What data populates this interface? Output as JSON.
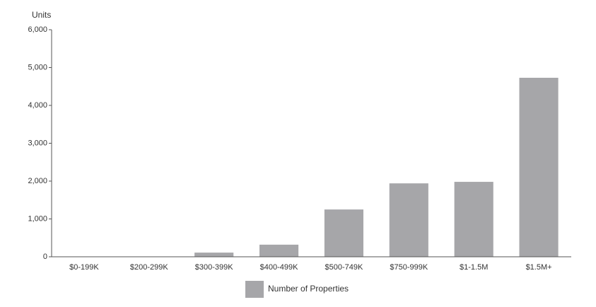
{
  "chart_data": {
    "type": "bar",
    "y_label": "Units",
    "categories": [
      "$0-199K",
      "$200-299K",
      "$300-399K",
      "$400-499K",
      "$500-749K",
      "$750-999K",
      "$1-1.5M",
      "$1.5M+"
    ],
    "series": [
      {
        "name": "Number of Properties",
        "color": "#a6a6a9",
        "values": [
          0,
          0,
          110,
          320,
          1250,
          1940,
          1980,
          4730
        ]
      }
    ],
    "ylim": [
      0,
      6000
    ],
    "yticks": [
      0,
      {
        "value": 1000,
        "label": "1,000"
      },
      {
        "value": 2000,
        "label": "2,000"
      },
      {
        "value": 3000,
        "label": "3,000"
      },
      {
        "value": 4000,
        "label": "4,000"
      },
      {
        "value": 5000,
        "label": "5,000"
      },
      {
        "value": 6000,
        "label": "6,000"
      }
    ],
    "grid": false
  }
}
